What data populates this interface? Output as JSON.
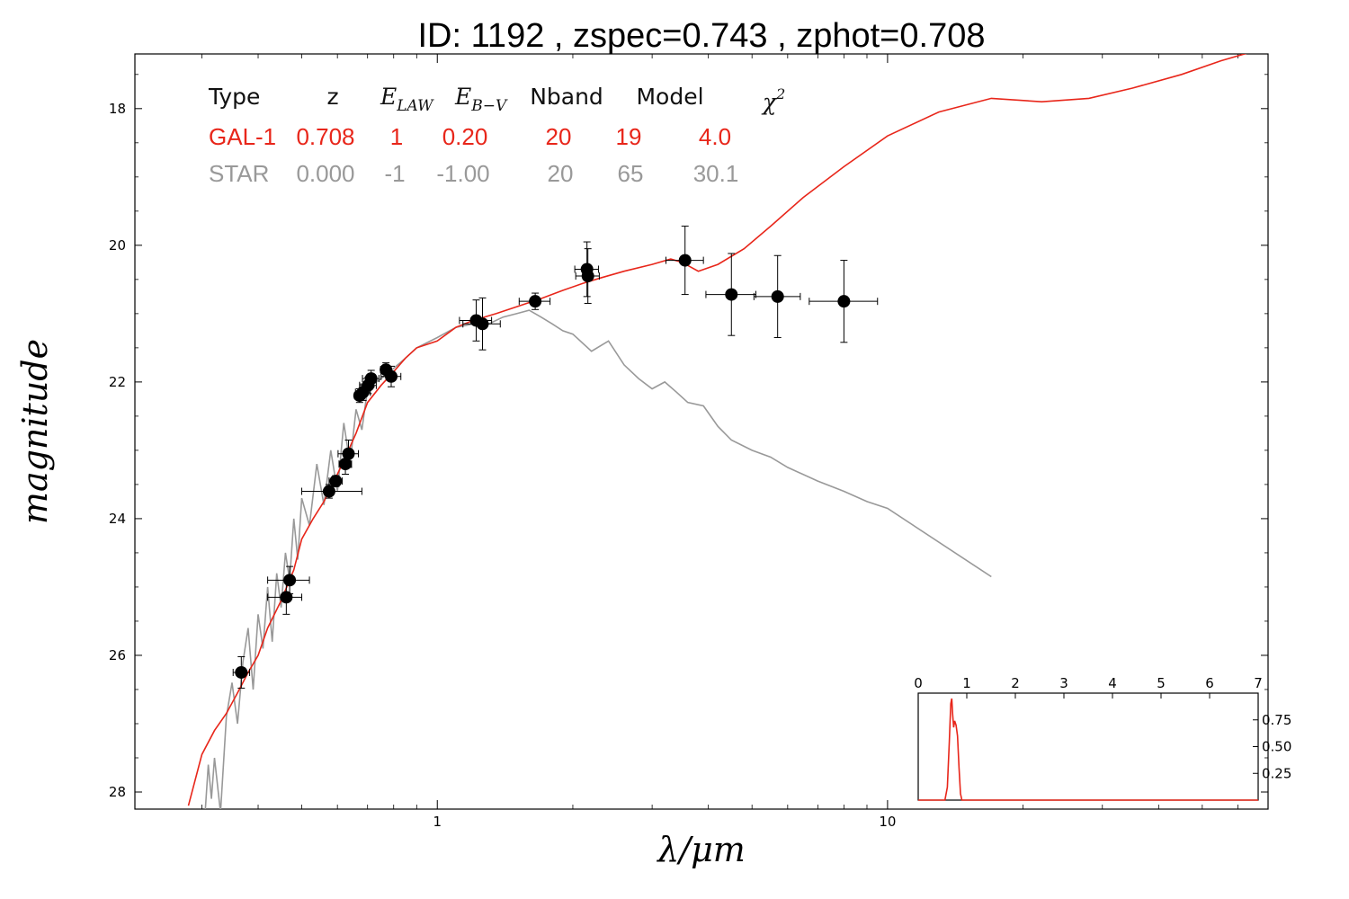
{
  "chart_data": {
    "type": "scatter",
    "title": "ID:  1192  , zspec=0.743 , zphot=0.708",
    "xlabel": "λ/μm",
    "ylabel": "magnitude",
    "xscale": "log",
    "xlim": [
      0.213,
      70
    ],
    "ylim": [
      28.25,
      17.2
    ],
    "x_ticks": [
      1,
      10
    ],
    "y_ticks": [
      18,
      20,
      22,
      24,
      26,
      28
    ],
    "fit_table": {
      "headers": [
        "Type",
        "z",
        "E_LAW",
        "E_B-V",
        "Nband",
        "Model",
        "χ2"
      ],
      "rows": [
        {
          "color": "#e8261a",
          "values": [
            "GAL-1",
            "0.708",
            "1",
            "0.20",
            "20",
            "19",
            "4.0"
          ]
        },
        {
          "color": "#999999",
          "values": [
            "STAR",
            "0.000",
            "-1",
            "-1.00",
            "20",
            "65",
            "30.1"
          ]
        }
      ]
    },
    "series": [
      {
        "kind": "points",
        "color": "#000000",
        "points": [
          {
            "x": 0.367,
            "y": 26.25,
            "xerr": [
              0.352,
              0.383
            ],
            "yerr": 0.23
          },
          {
            "x": 0.462,
            "y": 25.15,
            "xerr": [
              0.42,
              0.5
            ],
            "yerr": 0.25
          },
          {
            "x": 0.47,
            "y": 24.9,
            "xerr": [
              0.42,
              0.52
            ],
            "yerr": 0.2
          },
          {
            "x": 0.575,
            "y": 23.6,
            "xerr": [
              0.5,
              0.68
            ],
            "yerr": 0.1
          },
          {
            "x": 0.595,
            "y": 23.45,
            "xerr": [
              0.575,
              0.615
            ],
            "yerr": 0.08
          },
          {
            "x": 0.625,
            "y": 23.2,
            "xerr": [
              0.605,
              0.645
            ],
            "yerr": 0.15
          },
          {
            "x": 0.635,
            "y": 23.05,
            "xerr": [
              0.602,
              0.668
            ],
            "yerr": 0.2
          },
          {
            "x": 0.672,
            "y": 22.2,
            "xerr": [
              0.655,
              0.69
            ],
            "yerr": 0.1
          },
          {
            "x": 0.684,
            "y": 22.15,
            "xerr": [
              0.658,
              0.71
            ],
            "yerr": 0.12
          },
          {
            "x": 0.702,
            "y": 22.05,
            "xerr": [
              0.672,
              0.732
            ],
            "yerr": 0.12
          },
          {
            "x": 0.713,
            "y": 21.95,
            "xerr": [
              0.682,
              0.742
            ],
            "yerr": 0.12
          },
          {
            "x": 0.769,
            "y": 21.82,
            "xerr": [
              0.748,
              0.79
            ],
            "yerr": 0.1
          },
          {
            "x": 0.79,
            "y": 21.92,
            "xerr": [
              0.75,
              0.83
            ],
            "yerr": 0.15
          },
          {
            "x": 1.22,
            "y": 21.1,
            "xerr": [
              1.12,
              1.32
            ],
            "yerr": 0.3
          },
          {
            "x": 1.26,
            "y": 21.15,
            "xerr": [
              1.14,
              1.38
            ],
            "yerr": 0.38
          },
          {
            "x": 1.65,
            "y": 20.82,
            "xerr": [
              1.52,
              1.78
            ],
            "yerr": 0.12
          },
          {
            "x": 2.15,
            "y": 20.35,
            "xerr": [
              2.02,
              2.28
            ],
            "yerr": 0.4
          },
          {
            "x": 2.16,
            "y": 20.45,
            "xerr": [
              2.03,
              2.29
            ],
            "yerr": 0.4
          },
          {
            "x": 3.55,
            "y": 20.22,
            "xerr": [
              3.22,
              3.9
            ],
            "yerr": 0.5
          },
          {
            "x": 4.5,
            "y": 20.72,
            "xerr": [
              3.95,
              5.1
            ],
            "yerr": 0.6
          },
          {
            "x": 5.7,
            "y": 20.75,
            "xerr": [
              5.05,
              6.4
            ],
            "yerr": 0.6
          },
          {
            "x": 8.0,
            "y": 20.82,
            "xerr": [
              6.7,
              9.5
            ],
            "yerr": 0.6
          }
        ]
      },
      {
        "kind": "line",
        "color": "#e8261a",
        "x": [
          0.28,
          0.3,
          0.32,
          0.34,
          0.36,
          0.38,
          0.4,
          0.42,
          0.45,
          0.48,
          0.5,
          0.53,
          0.56,
          0.6,
          0.63,
          0.66,
          0.7,
          0.75,
          0.8,
          0.85,
          0.9,
          1.0,
          1.1,
          1.2,
          1.35,
          1.5,
          1.7,
          1.9,
          2.1,
          2.3,
          2.6,
          3.0,
          3.3,
          3.5,
          3.8,
          4.2,
          4.8,
          5.5,
          6.5,
          8,
          10,
          13,
          17,
          22,
          28,
          35,
          45,
          55,
          70
        ],
        "y": [
          28.2,
          27.45,
          27.1,
          26.85,
          26.55,
          26.25,
          26.0,
          25.6,
          25.2,
          24.75,
          24.3,
          24.0,
          23.75,
          23.35,
          23.05,
          22.75,
          22.3,
          22.05,
          21.85,
          21.65,
          21.5,
          21.4,
          21.2,
          21.1,
          21.0,
          20.9,
          20.78,
          20.66,
          20.56,
          20.48,
          20.38,
          20.28,
          20.2,
          20.25,
          20.38,
          20.28,
          20.05,
          19.72,
          19.3,
          18.85,
          18.4,
          18.05,
          17.85,
          17.9,
          17.85,
          17.7,
          17.5,
          17.3,
          17.1
        ]
      },
      {
        "kind": "line",
        "color": "#999999",
        "x": [
          0.305,
          0.31,
          0.315,
          0.32,
          0.33,
          0.34,
          0.35,
          0.36,
          0.37,
          0.38,
          0.39,
          0.4,
          0.41,
          0.42,
          0.43,
          0.44,
          0.45,
          0.46,
          0.47,
          0.48,
          0.49,
          0.5,
          0.52,
          0.54,
          0.56,
          0.58,
          0.6,
          0.62,
          0.64,
          0.66,
          0.68,
          0.7,
          0.75,
          0.8,
          0.85,
          0.9,
          1.0,
          1.1,
          1.2,
          1.3,
          1.4,
          1.5,
          1.6,
          1.7,
          1.8,
          1.9,
          2.0,
          2.2,
          2.4,
          2.6,
          2.8,
          3.0,
          3.2,
          3.4,
          3.6,
          3.9,
          4.2,
          4.5,
          5.0,
          5.5,
          6.0,
          7.0,
          8.0,
          9.0,
          10.0,
          17.0
        ],
        "y": [
          28.3,
          27.6,
          28.1,
          27.5,
          28.3,
          26.9,
          26.4,
          27.0,
          26.1,
          25.6,
          26.5,
          25.4,
          25.9,
          25.0,
          25.8,
          24.8,
          25.3,
          24.5,
          24.9,
          24.0,
          24.6,
          23.7,
          24.1,
          23.2,
          23.8,
          23.0,
          23.6,
          22.6,
          23.2,
          22.4,
          22.7,
          22.1,
          21.95,
          21.8,
          21.65,
          21.5,
          21.35,
          21.2,
          21.15,
          21.15,
          21.05,
          21.0,
          20.95,
          21.05,
          21.15,
          21.25,
          21.3,
          21.55,
          21.4,
          21.75,
          21.95,
          22.1,
          22.0,
          22.15,
          22.3,
          22.35,
          22.65,
          22.85,
          23.0,
          23.1,
          23.25,
          23.45,
          23.6,
          23.75,
          23.85,
          24.85
        ]
      }
    ],
    "inset": {
      "type": "line",
      "xlim": [
        0,
        7
      ],
      "x_ticks": [
        "0",
        "1",
        "2",
        "3",
        "4",
        "5",
        "6",
        "7"
      ],
      "y_ticks": [
        "0.25",
        "0.50",
        "0.75"
      ],
      "ylim": [
        0,
        1
      ],
      "color": "#e8261a",
      "x": [
        0,
        0.55,
        0.6,
        0.64,
        0.67,
        0.69,
        0.71,
        0.73,
        0.75,
        0.78,
        0.81,
        0.84,
        0.87,
        0.9,
        7
      ],
      "y": [
        0,
        0,
        0.12,
        0.55,
        0.9,
        0.95,
        0.8,
        0.68,
        0.74,
        0.7,
        0.6,
        0.3,
        0.06,
        0,
        0
      ]
    }
  }
}
